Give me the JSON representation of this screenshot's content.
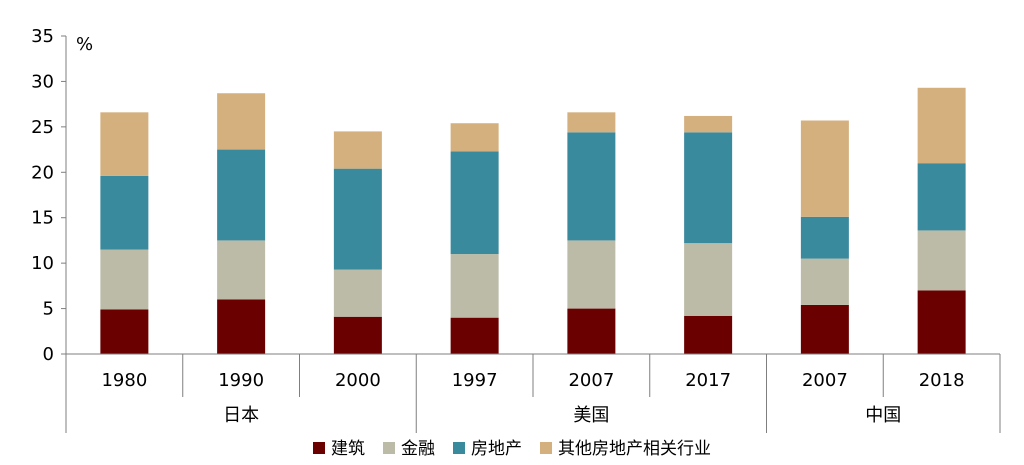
{
  "chart_data": {
    "type": "bar",
    "stacked": true,
    "unit_label": "%",
    "ylim": [
      0,
      35
    ],
    "yticks": [
      0,
      5,
      10,
      15,
      20,
      25,
      30,
      35
    ],
    "categories": [
      "1980",
      "1990",
      "2000",
      "1997",
      "2007",
      "2017",
      "2007",
      "2018"
    ],
    "groups": [
      {
        "label": "日本",
        "start": 0,
        "end": 2
      },
      {
        "label": "美国",
        "start": 3,
        "end": 5
      },
      {
        "label": "中国",
        "start": 6,
        "end": 7
      }
    ],
    "series": [
      {
        "name": "建筑",
        "color": "#6b0000",
        "values": [
          4.9,
          6.0,
          4.1,
          4.0,
          5.0,
          4.2,
          5.4,
          7.0
        ]
      },
      {
        "name": "金融",
        "color": "#bcbba8",
        "values": [
          6.6,
          6.5,
          5.2,
          7.0,
          7.5,
          8.0,
          5.1,
          6.6
        ]
      },
      {
        "name": "房地产",
        "color": "#3a8a9e",
        "values": [
          8.1,
          10.0,
          11.1,
          11.3,
          11.9,
          12.2,
          4.6,
          7.4
        ]
      },
      {
        "name": "其他房地产相关行业",
        "color": "#d4b07e",
        "values": [
          7.0,
          6.2,
          4.1,
          3.1,
          2.2,
          1.8,
          10.6,
          8.3
        ]
      }
    ],
    "legend_position": "bottom",
    "grid": false
  }
}
